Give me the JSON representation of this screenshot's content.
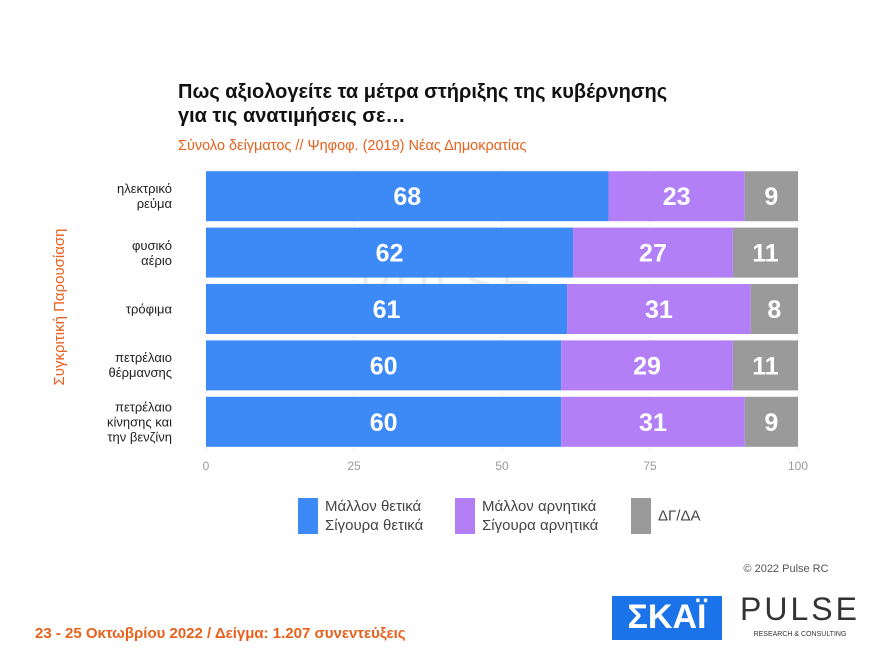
{
  "chart_data": {
    "type": "stacked_barh",
    "title": "Πως αξιολογείτε τα μέτρα στήριξης της κυβέρνησης\nγια τις ανατιμήσεις σε…",
    "subtitle": "Σύνολο δείγματος // Ψηφοφ. (2019)  Νέας Δημοκρατίας",
    "y_label": "Συγκριτική  Παρουσίαση",
    "categories": [
      "ηλεκτρικό\nρεύμα",
      "φυσικό\nαέριο",
      "τρόφιμα",
      "πετρέλαιο\nθέρμανσης",
      "πετρέλαιο\nκίνησης και\nτην βενζίνη"
    ],
    "series": [
      {
        "name": "Μάλλον θετικά\nΣίγουρα θετικά",
        "color": "#3d8af7",
        "values": [
          68,
          62,
          61,
          60,
          60
        ]
      },
      {
        "name": "Μάλλον αρνητικά\nΣίγουρα αρνητικά",
        "color": "#b37ff6",
        "values": [
          23,
          27,
          31,
          29,
          31
        ]
      },
      {
        "name": "ΔΓ/ΔΑ",
        "color": "#9a9a9a",
        "values": [
          9,
          11,
          8,
          11,
          9
        ]
      }
    ],
    "xlim": [
      0,
      100
    ],
    "xticks": [
      0,
      25,
      50,
      75,
      100
    ],
    "grid": true,
    "footer": "23 - 25  Οκτωβρίου  2022  /  Δείγμα:  1.207 συνεντεύξεις",
    "copyright": "© 2022 Pulse RC",
    "logos": [
      "ΣΚΑΪ",
      "PULSE",
      "RESEARCH & CONSULTING"
    ]
  }
}
